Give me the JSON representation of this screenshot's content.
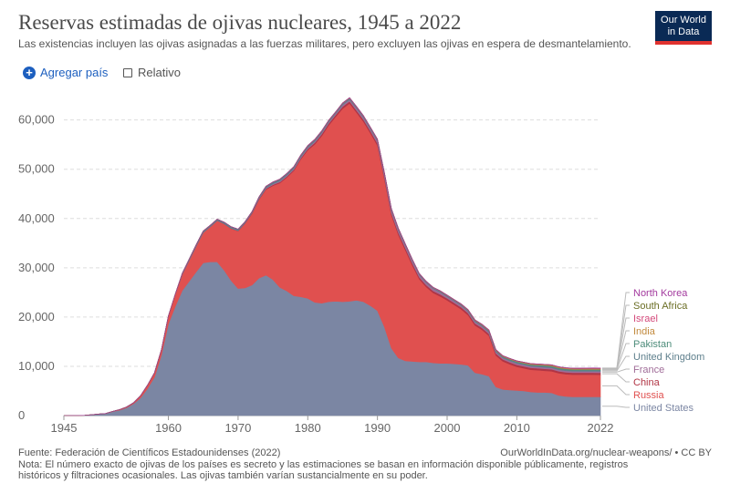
{
  "header": {
    "title": "Reservas estimadas de ojivas nucleares, 1945 a 2022",
    "subtitle": "Las existencias incluyen las ojivas asignadas a las fuerzas militares, pero excluyen las ojivas en espera de desmantelamiento.",
    "logo_line1": "Our World",
    "logo_line2": "in Data"
  },
  "controls": {
    "add_label": "Agregar país",
    "relative_label": "Relativo"
  },
  "footer": {
    "source": "Fuente: Federación de Científicos Estadounidenses (2022)",
    "note": "Nota: El número exacto de ojivas de los países es secreto y las estimaciones se basan en información disponible públicamente, registros históricos y filtraciones ocasionales. Las ojivas también varían sustancialmente en su poder.",
    "url": "OurWorldInData.org/nuclear-weapons/ • CC BY"
  },
  "chart_data": {
    "type": "area",
    "stacked": true,
    "x": [
      1945,
      1946,
      1947,
      1948,
      1949,
      1950,
      1951,
      1952,
      1953,
      1954,
      1955,
      1956,
      1957,
      1958,
      1959,
      1960,
      1961,
      1962,
      1963,
      1964,
      1965,
      1966,
      1967,
      1968,
      1969,
      1970,
      1971,
      1972,
      1973,
      1974,
      1975,
      1976,
      1977,
      1978,
      1979,
      1980,
      1981,
      1982,
      1983,
      1984,
      1985,
      1986,
      1987,
      1988,
      1989,
      1990,
      1991,
      1992,
      1993,
      1994,
      1995,
      1996,
      1997,
      1998,
      1999,
      2000,
      2001,
      2002,
      2003,
      2004,
      2005,
      2006,
      2007,
      2008,
      2009,
      2010,
      2011,
      2012,
      2013,
      2014,
      2015,
      2016,
      2017,
      2018,
      2019,
      2020,
      2021,
      2022
    ],
    "series": [
      {
        "name": "United States",
        "color": "#7b86a3",
        "values": [
          2,
          9,
          13,
          50,
          170,
          300,
          400,
          800,
          1100,
          1600,
          2400,
          3600,
          5500,
          7800,
          12300,
          18600,
          22200,
          25400,
          27300,
          29200,
          31000,
          31200,
          31200,
          29500,
          27400,
          25800,
          25900,
          26500,
          27900,
          28500,
          27600,
          26000,
          25300,
          24300,
          24100,
          23800,
          23000,
          22800,
          23100,
          23200,
          23100,
          23200,
          23400,
          23100,
          22300,
          21300,
          18000,
          13700,
          11700,
          11100,
          11000,
          10900,
          10900,
          10700,
          10600,
          10600,
          10500,
          10400,
          10200,
          8700,
          8400,
          8000,
          5800,
          5300,
          5200,
          5100,
          5000,
          4800,
          4700,
          4700,
          4600,
          4100,
          3900,
          3800,
          3800,
          3800,
          3800,
          3800
        ]
      },
      {
        "name": "Russia",
        "color": "#e0504f",
        "values": [
          0,
          0,
          0,
          0,
          1,
          5,
          25,
          50,
          120,
          150,
          200,
          426,
          660,
          869,
          1060,
          1605,
          2471,
          3322,
          4238,
          5221,
          6129,
          7089,
          8339,
          9399,
          10538,
          11643,
          13092,
          14478,
          15915,
          17385,
          19055,
          21205,
          23044,
          25393,
          27935,
          30062,
          32049,
          33952,
          35804,
          37431,
          39197,
          40159,
          38107,
          36538,
          35000,
          33500,
          30000,
          27000,
          25000,
          22500,
          19500,
          16800,
          15200,
          14200,
          13600,
          12800,
          12000,
          11200,
          10200,
          9600,
          9000,
          8200,
          6400,
          5700,
          5200,
          4800,
          4600,
          4500,
          4500,
          4400,
          4400,
          4500,
          4500,
          4500,
          4500,
          4500,
          4500,
          4477
        ]
      },
      {
        "name": "China",
        "color": "#b13545",
        "values": [
          0,
          0,
          0,
          0,
          0,
          0,
          0,
          0,
          0,
          0,
          0,
          0,
          0,
          0,
          0,
          0,
          0,
          0,
          0,
          1,
          5,
          20,
          25,
          35,
          50,
          75,
          100,
          130,
          150,
          170,
          185,
          190,
          200,
          220,
          235,
          280,
          330,
          360,
          380,
          400,
          420,
          430,
          430,
          430,
          430,
          430,
          430,
          430,
          430,
          430,
          430,
          400,
          400,
          400,
          400,
          400,
          400,
          400,
          400,
          400,
          400,
          400,
          400,
          400,
          400,
          400,
          400,
          400,
          400,
          400,
          400,
          400,
          400,
          400,
          400,
          400,
          400,
          410
        ]
      },
      {
        "name": "France",
        "color": "#a06c98",
        "values": [
          0,
          0,
          0,
          0,
          0,
          0,
          0,
          0,
          0,
          0,
          0,
          0,
          0,
          0,
          0,
          0,
          0,
          0,
          0,
          4,
          32,
          36,
          36,
          36,
          36,
          36,
          45,
          70,
          116,
          145,
          188,
          212,
          228,
          235,
          235,
          250,
          274,
          274,
          279,
          280,
          360,
          355,
          420,
          411,
          404,
          505,
          525,
          540,
          525,
          510,
          500,
          450,
          450,
          450,
          450,
          350,
          350,
          350,
          350,
          350,
          350,
          350,
          350,
          300,
          300,
          300,
          300,
          300,
          300,
          300,
          300,
          300,
          300,
          300,
          290,
          290,
          290,
          290
        ]
      },
      {
        "name": "United Kingdom",
        "color": "#5e7f8c",
        "values": [
          0,
          0,
          0,
          0,
          0,
          0,
          0,
          0,
          1,
          5,
          10,
          15,
          20,
          22,
          25,
          30,
          50,
          205,
          280,
          310,
          310,
          270,
          270,
          280,
          308,
          280,
          220,
          220,
          275,
          325,
          350,
          350,
          350,
          350,
          350,
          350,
          350,
          335,
          320,
          270,
          300,
          300,
          300,
          300,
          300,
          300,
          300,
          300,
          300,
          250,
          234,
          234,
          225,
          200,
          200,
          200,
          200,
          200,
          200,
          200,
          200,
          200,
          200,
          200,
          225,
          225,
          225,
          225,
          225,
          225,
          215,
          215,
          215,
          215,
          215,
          225,
          225,
          225
        ]
      },
      {
        "name": "Pakistan",
        "color": "#4d8c7a",
        "values": [
          0,
          0,
          0,
          0,
          0,
          0,
          0,
          0,
          0,
          0,
          0,
          0,
          0,
          0,
          0,
          0,
          0,
          0,
          0,
          0,
          0,
          0,
          0,
          0,
          0,
          0,
          0,
          0,
          0,
          0,
          0,
          0,
          0,
          0,
          0,
          0,
          0,
          0,
          0,
          0,
          0,
          0,
          0,
          0,
          0,
          0,
          0,
          0,
          0,
          0,
          0,
          0,
          0,
          5,
          10,
          15,
          20,
          30,
          40,
          50,
          60,
          70,
          80,
          90,
          100,
          110,
          120,
          130,
          140,
          150,
          155,
          160,
          165,
          165,
          165,
          165,
          165,
          165
        ]
      },
      {
        "name": "India",
        "color": "#c28a3d",
        "values": [
          0,
          0,
          0,
          0,
          0,
          0,
          0,
          0,
          0,
          0,
          0,
          0,
          0,
          0,
          0,
          0,
          0,
          0,
          0,
          0,
          0,
          0,
          0,
          0,
          0,
          0,
          0,
          0,
          0,
          0,
          0,
          0,
          0,
          0,
          0,
          0,
          0,
          0,
          0,
          0,
          0,
          0,
          0,
          0,
          0,
          0,
          0,
          0,
          0,
          0,
          0,
          0,
          0,
          5,
          10,
          15,
          20,
          30,
          40,
          50,
          60,
          70,
          70,
          80,
          90,
          100,
          110,
          120,
          130,
          140,
          150,
          150,
          150,
          150,
          150,
          155,
          160,
          160
        ]
      },
      {
        "name": "Israel",
        "color": "#d4497b",
        "values": [
          0,
          0,
          0,
          0,
          0,
          0,
          0,
          0,
          0,
          0,
          0,
          0,
          0,
          0,
          0,
          0,
          0,
          0,
          0,
          0,
          0,
          0,
          0,
          2,
          4,
          8,
          12,
          15,
          20,
          24,
          30,
          35,
          40,
          45,
          50,
          55,
          60,
          65,
          70,
          75,
          80,
          80,
          80,
          80,
          80,
          80,
          80,
          80,
          80,
          80,
          80,
          80,
          80,
          80,
          80,
          80,
          80,
          80,
          80,
          80,
          80,
          80,
          80,
          80,
          80,
          80,
          80,
          80,
          80,
          80,
          80,
          80,
          80,
          80,
          90,
          90,
          90,
          90
        ]
      },
      {
        "name": "South Africa",
        "color": "#6b6e25",
        "values": [
          0,
          0,
          0,
          0,
          0,
          0,
          0,
          0,
          0,
          0,
          0,
          0,
          0,
          0,
          0,
          0,
          0,
          0,
          0,
          0,
          0,
          0,
          0,
          0,
          0,
          0,
          0,
          0,
          0,
          0,
          0,
          0,
          0,
          0,
          0,
          0,
          0,
          1,
          2,
          3,
          4,
          5,
          6,
          6,
          6,
          6,
          0,
          0,
          0,
          0,
          0,
          0,
          0,
          0,
          0,
          0,
          0,
          0,
          0,
          0,
          0,
          0,
          0,
          0,
          0,
          0,
          0,
          0,
          0,
          0,
          0,
          0,
          0,
          0,
          0,
          0,
          0,
          0
        ]
      },
      {
        "name": "North Korea",
        "color": "#a33a9e",
        "values": [
          0,
          0,
          0,
          0,
          0,
          0,
          0,
          0,
          0,
          0,
          0,
          0,
          0,
          0,
          0,
          0,
          0,
          0,
          0,
          0,
          0,
          0,
          0,
          0,
          0,
          0,
          0,
          0,
          0,
          0,
          0,
          0,
          0,
          0,
          0,
          0,
          0,
          0,
          0,
          0,
          0,
          0,
          0,
          0,
          0,
          0,
          0,
          0,
          0,
          0,
          0,
          0,
          0,
          0,
          0,
          0,
          0,
          0,
          0,
          0,
          0,
          0,
          1,
          2,
          3,
          4,
          5,
          6,
          8,
          10,
          12,
          15,
          20,
          25,
          30,
          35,
          40,
          40
        ]
      }
    ],
    "y_ticks": [
      "0",
      "10,000",
      "20,000",
      "30,000",
      "40,000",
      "50,000",
      "60,000"
    ],
    "x_ticks": [
      "1945",
      "1960",
      "1970",
      "1980",
      "1990",
      "2000",
      "2010",
      "2022"
    ],
    "ylim": [
      0,
      64000
    ],
    "xlim": [
      1945,
      2022
    ],
    "legend_placement": "right"
  }
}
